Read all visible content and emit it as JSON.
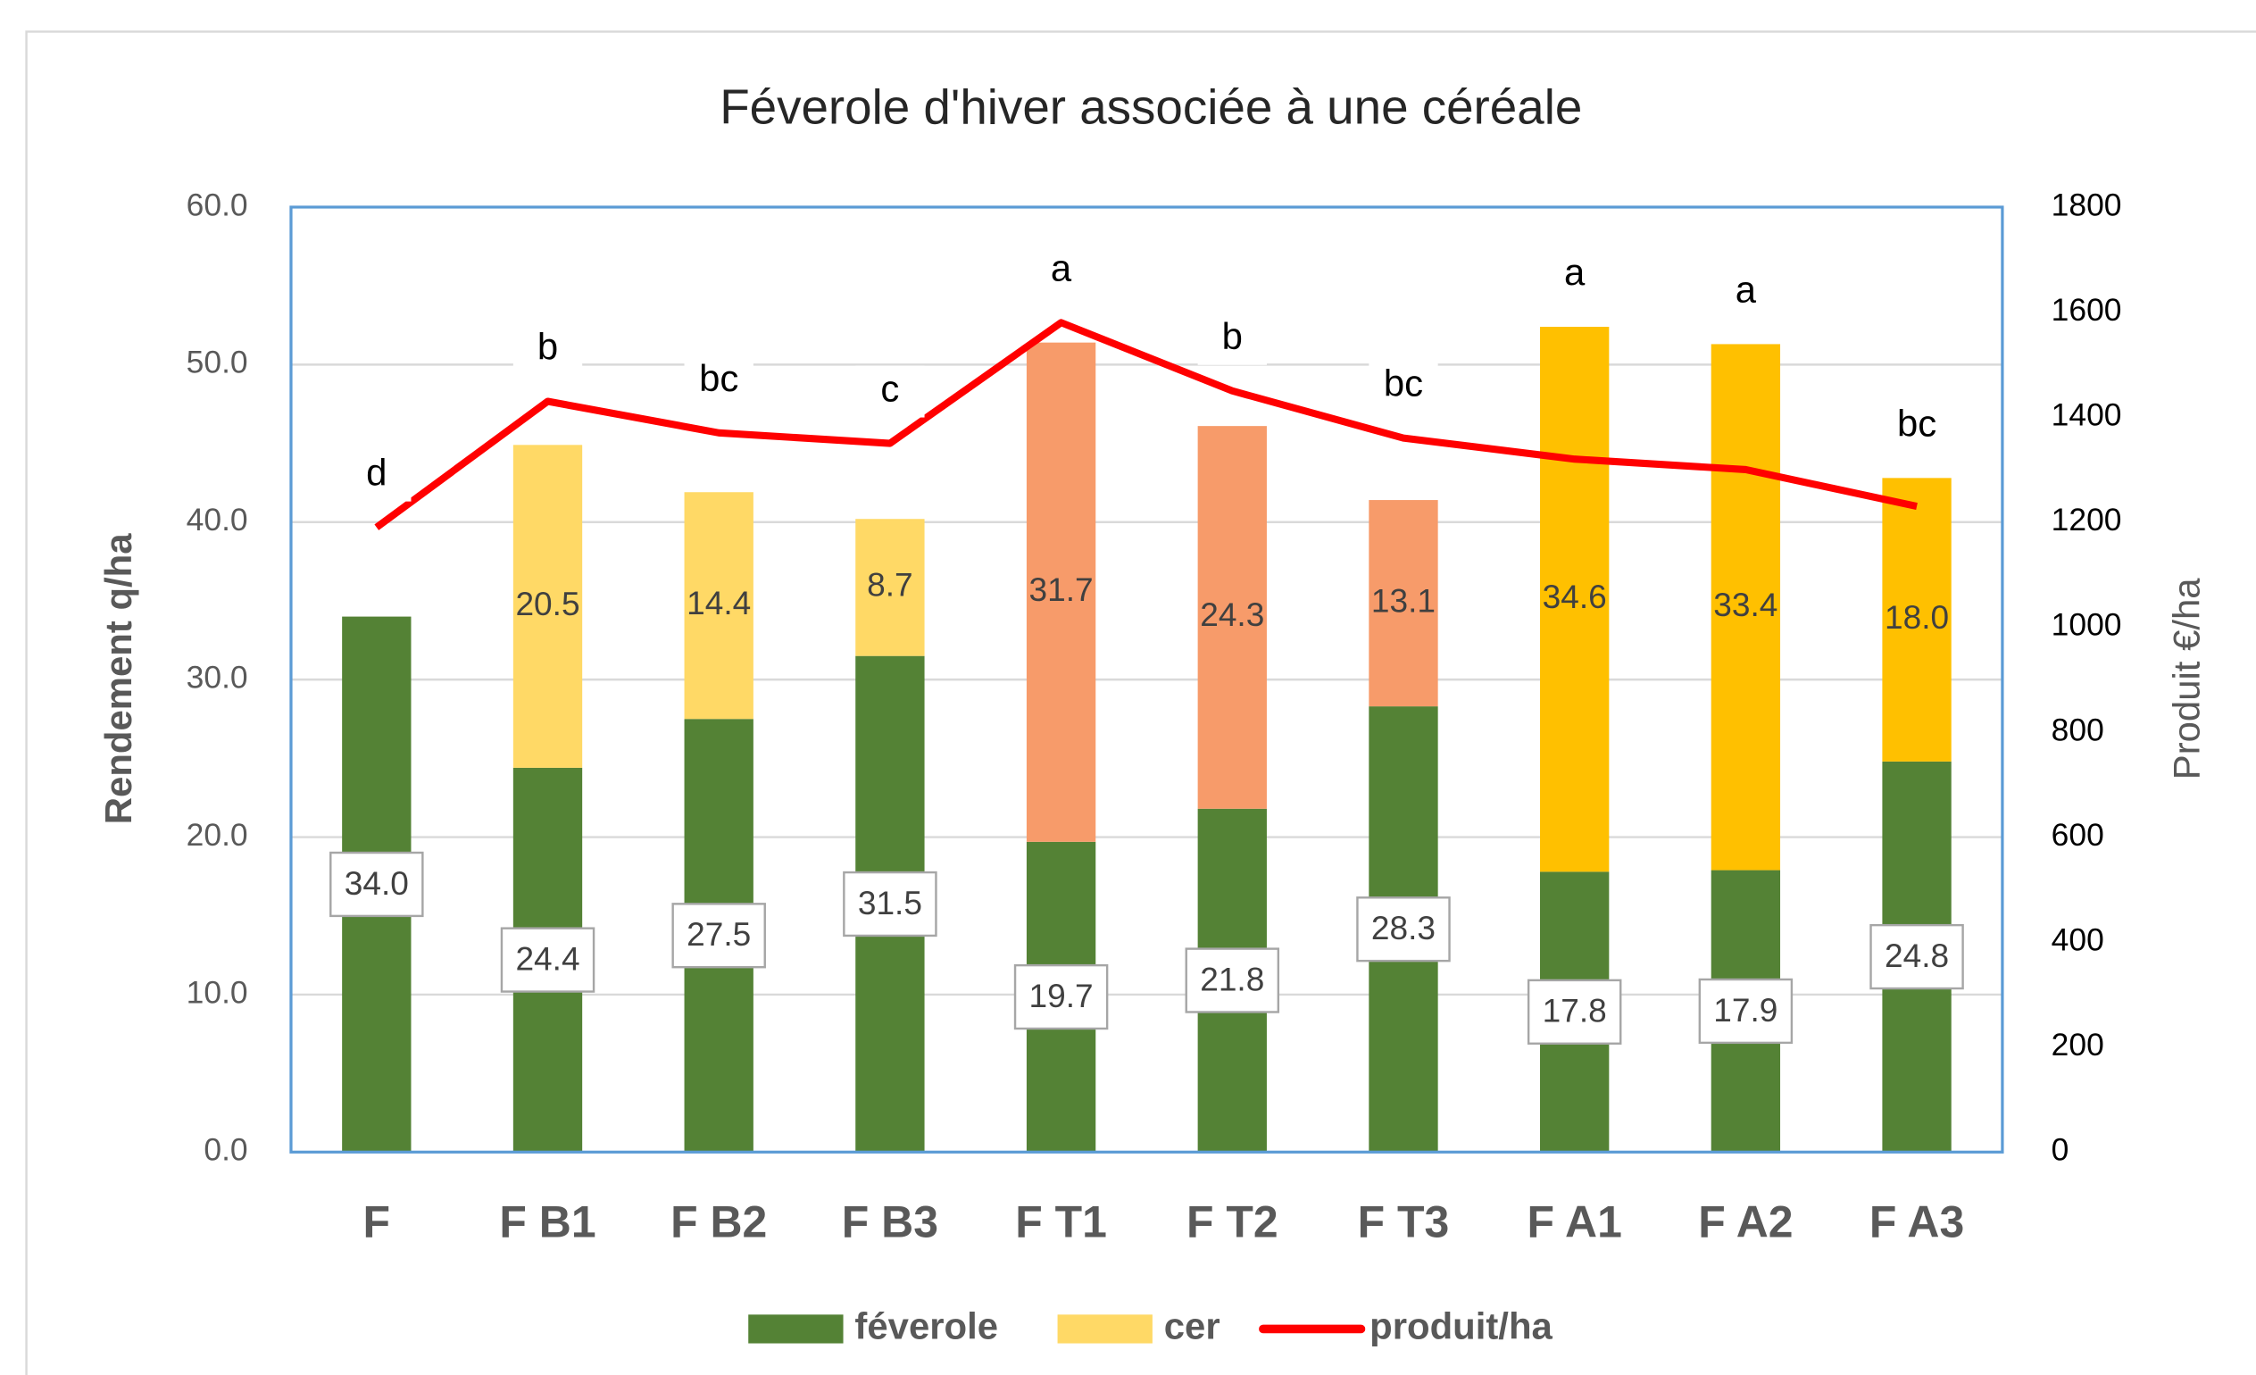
{
  "chart_data": {
    "type": "stacked_bar_line",
    "title": "Féverole d'hiver associée à une céréale",
    "ylabel": "Rendement  q/ha",
    "y2label": "Produit  €/ha",
    "categories": [
      "F",
      "F B1",
      "F B2",
      "F B3",
      "F T1",
      "F T2",
      "F T3",
      "F A1",
      "F A2",
      "F A3"
    ],
    "series": [
      {
        "name": "féverole",
        "color": "#548235",
        "values": [
          34.0,
          24.4,
          27.5,
          31.5,
          19.7,
          21.8,
          28.3,
          17.8,
          17.9,
          24.8
        ],
        "value_labels": [
          "34.0",
          "24.4",
          "27.5",
          "31.5",
          "19.7",
          "21.8",
          "28.3",
          "17.8",
          "17.9",
          "24.8"
        ]
      },
      {
        "name": "cer",
        "color": "#FFD966",
        "colors": [
          null,
          "#FFD966",
          "#FFD966",
          "#FFD966",
          "#F79B6A",
          "#F79B6A",
          "#F79B6A",
          "#FFC000",
          "#FFC000",
          "#FFC000"
        ],
        "values": [
          null,
          20.5,
          14.4,
          8.7,
          31.7,
          24.3,
          13.1,
          34.6,
          33.4,
          18.0
        ],
        "value_labels": [
          null,
          "20.5",
          "14.4",
          "8.7",
          "31.7",
          "24.3",
          "13.1",
          "34.6",
          "33.4",
          "18.0"
        ]
      },
      {
        "name": "produit/ha",
        "color": "#FF0000",
        "type": "line",
        "axis": "y2",
        "values": [
          1190,
          1430,
          1370,
          1350,
          1580,
          1450,
          1360,
          1320,
          1300,
          1230
        ]
      }
    ],
    "annotations": [
      "d",
      "b",
      "bc",
      "c",
      "a",
      "b",
      "bc",
      "a",
      "a",
      "bc"
    ],
    "ylim": [
      0,
      60
    ],
    "yticks": [
      {
        "value": 0,
        "label": "0.0"
      },
      {
        "value": 10,
        "label": "10.0"
      },
      {
        "value": 20,
        "label": "20.0"
      },
      {
        "value": 30,
        "label": "30.0"
      },
      {
        "value": 40,
        "label": "40.0"
      },
      {
        "value": 50,
        "label": "50.0"
      },
      {
        "value": 60,
        "label": "60.0"
      }
    ],
    "y2lim": [
      0,
      1800
    ],
    "y2ticks": [
      0,
      200,
      400,
      600,
      800,
      1000,
      1200,
      1400,
      1600,
      1800
    ],
    "grid": true,
    "legend": "bottom"
  }
}
